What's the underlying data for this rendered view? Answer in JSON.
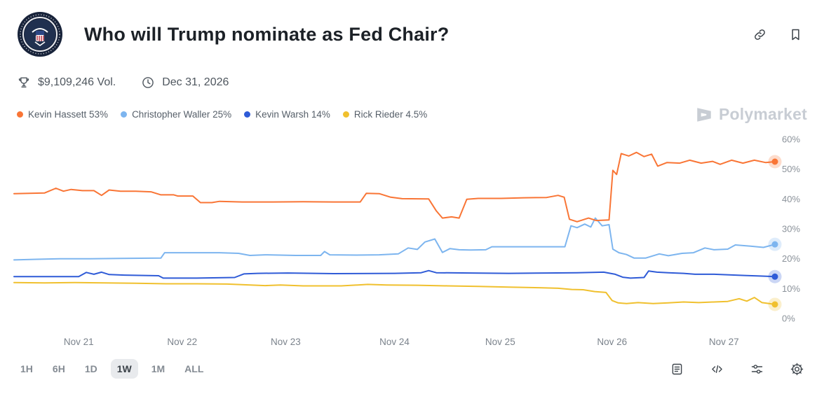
{
  "header": {
    "title": "Who will Trump nominate as Fed Chair?",
    "volume": "$9,109,246 Vol.",
    "end_date": "Dec 31, 2026"
  },
  "watermark": "Polymarket",
  "timeframes": [
    {
      "label": "1H",
      "selected": false
    },
    {
      "label": "6H",
      "selected": false
    },
    {
      "label": "1D",
      "selected": false
    },
    {
      "label": "1W",
      "selected": true
    },
    {
      "label": "1M",
      "selected": false
    },
    {
      "label": "ALL",
      "selected": false
    }
  ],
  "chart_data": {
    "type": "line",
    "title": "Who will Trump nominate as Fed Chair?",
    "ylim": [
      0,
      60
    ],
    "y_ticks": [
      {
        "value": 0,
        "label": "0%"
      },
      {
        "value": 10,
        "label": "10%"
      },
      {
        "value": 20,
        "label": "20%"
      },
      {
        "value": 30,
        "label": "30%"
      },
      {
        "value": 40,
        "label": "40%"
      },
      {
        "value": 50,
        "label": "50%"
      },
      {
        "value": 60,
        "label": "60%"
      }
    ],
    "x_ticks": [
      {
        "pos": 8.5,
        "label": "Nov 21"
      },
      {
        "pos": 22.1,
        "label": "Nov 22"
      },
      {
        "pos": 35.7,
        "label": "Nov 23"
      },
      {
        "pos": 50.0,
        "label": "Nov 24"
      },
      {
        "pos": 63.9,
        "label": "Nov 25"
      },
      {
        "pos": 78.6,
        "label": "Nov 26"
      },
      {
        "pos": 93.3,
        "label": "Nov 27"
      }
    ],
    "legend_position": "top-left",
    "grid": false,
    "series": [
      {
        "name": "Rick Rieder",
        "pct_label": "4.5%",
        "color": "#f0c02e",
        "points": [
          [
            0,
            12
          ],
          [
            4,
            11.9
          ],
          [
            8,
            12
          ],
          [
            12,
            11.9
          ],
          [
            16,
            11.8
          ],
          [
            20,
            11.6
          ],
          [
            24,
            11.6
          ],
          [
            28,
            11.5
          ],
          [
            33,
            11
          ],
          [
            35,
            11.2
          ],
          [
            38,
            10.9
          ],
          [
            43,
            10.9
          ],
          [
            46.5,
            11.4
          ],
          [
            49,
            11.2
          ],
          [
            53,
            11.1
          ],
          [
            57,
            10.9
          ],
          [
            61,
            10.7
          ],
          [
            65,
            10.5
          ],
          [
            69,
            10.3
          ],
          [
            71.5,
            10.1
          ],
          [
            73.3,
            9.7
          ],
          [
            74.8,
            9.6
          ],
          [
            76.3,
            9
          ],
          [
            77.8,
            8.7
          ],
          [
            78.6,
            6
          ],
          [
            79.4,
            5.2
          ],
          [
            80.5,
            5
          ],
          [
            82,
            5.3
          ],
          [
            84,
            5
          ],
          [
            86,
            5.2
          ],
          [
            88,
            5.5
          ],
          [
            90,
            5.3
          ],
          [
            92,
            5.5
          ],
          [
            93.8,
            5.7
          ],
          [
            95.3,
            6.6
          ],
          [
            96.3,
            5.8
          ],
          [
            97.3,
            7
          ],
          [
            98.3,
            5.3
          ],
          [
            100,
            4.7
          ]
        ]
      },
      {
        "name": "Kevin Warsh",
        "pct_label": "14%",
        "color": "#2f5bd7",
        "points": [
          [
            0,
            14
          ],
          [
            4,
            14
          ],
          [
            8.5,
            14
          ],
          [
            9.5,
            15.4
          ],
          [
            10.5,
            14.8
          ],
          [
            11.5,
            15.5
          ],
          [
            12.5,
            14.7
          ],
          [
            14.5,
            14.5
          ],
          [
            19,
            14.3
          ],
          [
            19.6,
            13.5
          ],
          [
            24,
            13.5
          ],
          [
            29,
            13.7
          ],
          [
            30.2,
            14.9
          ],
          [
            32,
            15.1
          ],
          [
            36,
            15.2
          ],
          [
            42,
            15
          ],
          [
            50,
            15.1
          ],
          [
            53.5,
            15.3
          ],
          [
            54.5,
            16
          ],
          [
            55.5,
            15.3
          ],
          [
            60,
            15.2
          ],
          [
            65,
            15.1
          ],
          [
            70,
            15.2
          ],
          [
            74,
            15.3
          ],
          [
            77.5,
            15.5
          ],
          [
            79,
            14.8
          ],
          [
            80,
            13.8
          ],
          [
            81,
            13.5
          ],
          [
            82.8,
            13.7
          ],
          [
            83.4,
            15.9
          ],
          [
            84.5,
            15.5
          ],
          [
            86,
            15.3
          ],
          [
            88,
            15.1
          ],
          [
            89.5,
            14.8
          ],
          [
            92,
            14.8
          ],
          [
            94,
            14.6
          ],
          [
            96,
            14.4
          ],
          [
            98,
            14.2
          ],
          [
            100,
            14
          ]
        ]
      },
      {
        "name": "Christopher Waller",
        "pct_label": "25%",
        "color": "#7db5ef",
        "points": [
          [
            0,
            19.6
          ],
          [
            3,
            19.8
          ],
          [
            6,
            20
          ],
          [
            10,
            20
          ],
          [
            14,
            20.1
          ],
          [
            19.3,
            20.2
          ],
          [
            19.8,
            22
          ],
          [
            23,
            22
          ],
          [
            27,
            22
          ],
          [
            29.5,
            21.8
          ],
          [
            31,
            21.1
          ],
          [
            33,
            21.3
          ],
          [
            37,
            21.1
          ],
          [
            40.3,
            21.1
          ],
          [
            40.8,
            22.4
          ],
          [
            41.5,
            21.3
          ],
          [
            45,
            21.2
          ],
          [
            48,
            21.3
          ],
          [
            50.5,
            21.6
          ],
          [
            51.8,
            23.6
          ],
          [
            53,
            23.1
          ],
          [
            54,
            25.6
          ],
          [
            55.3,
            26.6
          ],
          [
            56.3,
            22.1
          ],
          [
            57.3,
            23.4
          ],
          [
            58.5,
            23
          ],
          [
            60,
            22.9
          ],
          [
            62,
            23
          ],
          [
            62.8,
            24
          ],
          [
            66,
            24
          ],
          [
            70,
            24
          ],
          [
            72.4,
            24
          ],
          [
            73.2,
            31
          ],
          [
            74,
            30.4
          ],
          [
            75,
            31.6
          ],
          [
            75.8,
            30.6
          ],
          [
            76.4,
            33.6
          ],
          [
            77.3,
            31
          ],
          [
            78.2,
            31.4
          ],
          [
            78.7,
            23.2
          ],
          [
            79.5,
            22
          ],
          [
            80.5,
            21.4
          ],
          [
            81.5,
            20.2
          ],
          [
            83,
            20.2
          ],
          [
            84.8,
            21.6
          ],
          [
            86,
            21
          ],
          [
            87.8,
            21.8
          ],
          [
            89.3,
            22
          ],
          [
            90.8,
            23.6
          ],
          [
            92,
            23
          ],
          [
            93.8,
            23.2
          ],
          [
            94.8,
            24.6
          ],
          [
            96.8,
            24.2
          ],
          [
            98.5,
            23.8
          ],
          [
            100,
            24.8
          ]
        ]
      },
      {
        "name": "Kevin Hassett",
        "pct_label": "53%",
        "color": "#f97535",
        "points": [
          [
            0,
            41.8
          ],
          [
            2,
            41.9
          ],
          [
            4,
            42
          ],
          [
            5.5,
            43.6
          ],
          [
            6.5,
            42.6
          ],
          [
            7.5,
            43.2
          ],
          [
            9,
            42.8
          ],
          [
            10.5,
            42.8
          ],
          [
            11.5,
            41.2
          ],
          [
            12.5,
            43
          ],
          [
            14,
            42.6
          ],
          [
            16,
            42.6
          ],
          [
            18,
            42.4
          ],
          [
            19.3,
            41.4
          ],
          [
            21,
            41.4
          ],
          [
            21.5,
            41
          ],
          [
            23.5,
            41
          ],
          [
            24.5,
            38.8
          ],
          [
            26,
            38.8
          ],
          [
            27,
            39.2
          ],
          [
            30,
            39
          ],
          [
            34,
            39
          ],
          [
            38,
            39.1
          ],
          [
            42,
            39
          ],
          [
            45.5,
            39
          ],
          [
            46.3,
            41.9
          ],
          [
            48,
            41.8
          ],
          [
            49.5,
            40.6
          ],
          [
            51,
            40.1
          ],
          [
            54.5,
            40
          ],
          [
            55.5,
            36
          ],
          [
            56.3,
            33.6
          ],
          [
            57.5,
            34
          ],
          [
            58.5,
            33.6
          ],
          [
            59.5,
            39.9
          ],
          [
            61,
            40.2
          ],
          [
            64,
            40.2
          ],
          [
            67,
            40.4
          ],
          [
            70,
            40.5
          ],
          [
            71.5,
            41.2
          ],
          [
            72.3,
            40.6
          ],
          [
            73,
            33.2
          ],
          [
            74,
            32.4
          ],
          [
            75.5,
            33.6
          ],
          [
            76.5,
            32.8
          ],
          [
            78.2,
            33
          ],
          [
            78.7,
            49.6
          ],
          [
            79.2,
            48.2
          ],
          [
            79.8,
            55.2
          ],
          [
            80.8,
            54.4
          ],
          [
            81.8,
            55.6
          ],
          [
            82.8,
            54.2
          ],
          [
            83.8,
            55
          ],
          [
            84.6,
            51
          ],
          [
            85.8,
            52.2
          ],
          [
            87.5,
            52
          ],
          [
            88.8,
            53
          ],
          [
            90.3,
            52
          ],
          [
            91.8,
            52.6
          ],
          [
            92.8,
            51.6
          ],
          [
            94.3,
            53
          ],
          [
            95.8,
            52
          ],
          [
            97.3,
            53
          ],
          [
            98.8,
            52.2
          ],
          [
            100,
            52.5
          ]
        ]
      }
    ],
    "legend_order": [
      "Kevin Hassett",
      "Christopher Waller",
      "Kevin Warsh",
      "Rick Rieder"
    ]
  }
}
